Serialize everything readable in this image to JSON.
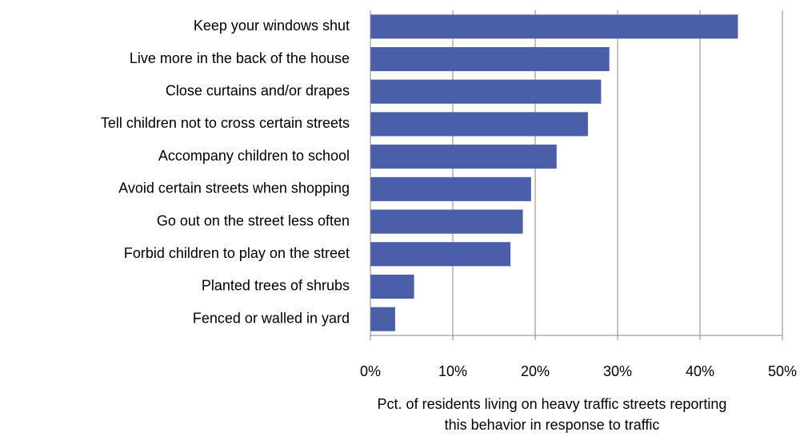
{
  "chart_data": {
    "type": "hbar",
    "categories": [
      "Keep your windows shut",
      "Live more in the back of the house",
      "Close curtains and/or drapes",
      "Tell children not to cross certain streets",
      "Accompany children to school",
      "Avoid certain streets when shopping",
      "Go out on the street less often",
      "Forbid children to play on the street",
      "Planted trees of shrubs",
      "Fenced or walled in yard"
    ],
    "values": [
      44.6,
      29,
      28,
      26.4,
      22.6,
      19.5,
      18.5,
      17,
      5.3,
      3
    ],
    "color": "#4a5fa8",
    "xlim": [
      0,
      50
    ],
    "xticks": [
      {
        "value": 0,
        "label": "0%"
      },
      {
        "value": 10,
        "label": "10%"
      },
      {
        "value": 20,
        "label": "20%"
      },
      {
        "value": 30,
        "label": "30%"
      },
      {
        "value": 40,
        "label": "40%"
      },
      {
        "value": 50,
        "label": "50%"
      }
    ],
    "grid": true,
    "xlabel": [
      "Pct. of residents living on heavy traffic streets reporting",
      "this behavior in response to traffic"
    ]
  }
}
